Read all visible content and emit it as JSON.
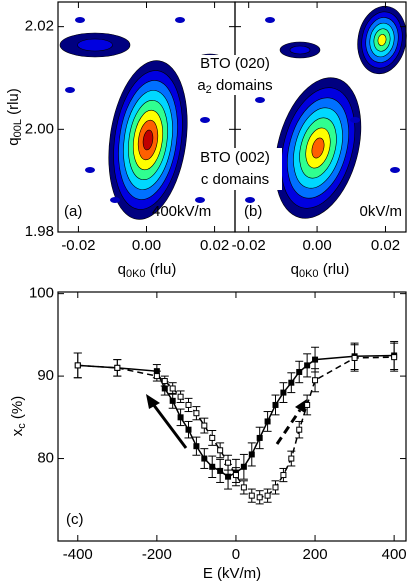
{
  "chart_data": [
    {
      "type": "contour",
      "panel_label": "(a)",
      "field_label": "400kV/m",
      "xlabel": [
        "q",
        "0K0",
        " (rlu)"
      ],
      "ylabel": [
        "q",
        "00L",
        " (rlu)"
      ],
      "xlim": [
        -0.026,
        0.026
      ],
      "xticks": [
        -0.02,
        {
          "value": 0,
          "label": "0.00"
        },
        0.02
      ],
      "ylim": [
        1.98,
        2.0248
      ],
      "yticks": [
        1.98,
        {
          "value": 2,
          "label": "2.00"
        },
        2.02
      ],
      "annotations": {
        "upper_peak": "BTO (020)",
        "upper_domains": [
          "a",
          "2",
          " domains"
        ],
        "lower_peak": "BTO (002)",
        "lower_domains": "c domains"
      }
    },
    {
      "type": "contour",
      "panel_label": "(b)",
      "field_label": "0kV/m",
      "xlabel": [
        "q",
        "0K0",
        " (rlu)"
      ],
      "xlim": [
        -0.024,
        0.026
      ],
      "xticks": [
        -0.02,
        {
          "value": 0,
          "label": "0.00"
        },
        0.02
      ],
      "ylim": [
        1.98,
        2.0248
      ],
      "yticks": [
        1.98,
        2,
        2.02
      ]
    },
    {
      "type": "line",
      "panel_label": "(c)",
      "xlabel": "E (kV/m)",
      "ylabel": [
        "x",
        "c",
        " (%)"
      ],
      "xlim": [
        -450,
        430
      ],
      "xticks": [
        -400,
        -200,
        0,
        200,
        400
      ],
      "ylim": [
        70,
        100.2
      ],
      "yticks": [
        80,
        90,
        100
      ],
      "x": [
        -400,
        -300,
        -200,
        -180,
        -160,
        -140,
        -120,
        -100,
        -80,
        -60,
        -40,
        -20,
        0,
        20,
        40,
        60,
        80,
        100,
        120,
        140,
        160,
        180,
        200,
        300,
        400
      ],
      "series": [
        {
          "color": "#000000",
          "style": "solid",
          "marker": "filled",
          "values": [
            91.3,
            91.0,
            90.6,
            88.5,
            87.0,
            85.0,
            83.5,
            81.5,
            80.0,
            79.0,
            78.5,
            77.8,
            78.3,
            79.0,
            80.5,
            82.5,
            84.5,
            86.5,
            88.0,
            89.2,
            90.5,
            91.3,
            92.0,
            92.4,
            92.5
          ],
          "errors": [
            1.5,
            1.0,
            0.8,
            0.8,
            0.9,
            1.0,
            1.0,
            1.1,
            1.2,
            1.3,
            1.4,
            1.5,
            1.6,
            1.5,
            1.4,
            1.3,
            1.2,
            1.2,
            1.2,
            1.2,
            1.3,
            1.4,
            1.5,
            1.6,
            1.7
          ]
        },
        {
          "color": "#000000",
          "style": "dashed",
          "marker": "open",
          "values": [
            91.3,
            91.0,
            90.0,
            89.4,
            88.5,
            87.5,
            86.5,
            85.5,
            84.0,
            82.5,
            81.0,
            79.5,
            78.0,
            76.5,
            75.5,
            75.3,
            75.5,
            76.5,
            78.0,
            80.0,
            83.5,
            86.5,
            89.5,
            92.2,
            92.3
          ],
          "errors": [
            1.5,
            1.0,
            0.6,
            0.6,
            0.7,
            0.7,
            0.8,
            0.8,
            0.9,
            0.9,
            0.9,
            0.9,
            0.9,
            0.8,
            0.8,
            0.8,
            0.8,
            0.8,
            0.8,
            0.9,
            1.0,
            1.2,
            1.4,
            1.6,
            1.7
          ]
        }
      ]
    }
  ]
}
